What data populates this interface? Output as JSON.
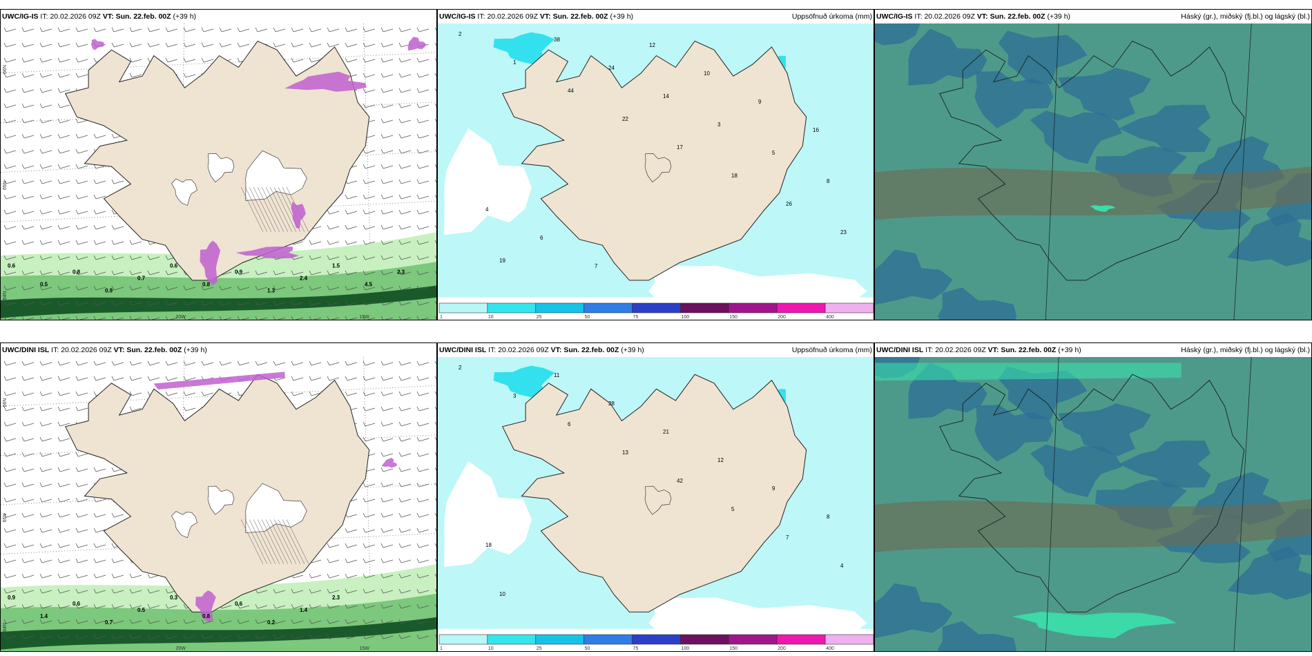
{
  "panels": [
    {
      "id": "ig-wind",
      "model": "UWC/IG-IS",
      "it_label": "IT:",
      "it_value": "20.02.2026 09Z",
      "vt_label": "VT:",
      "vt_value": "Sun. 22.feb. 00Z",
      "lead": "(+39 h)",
      "right_title": "",
      "lon_labels": [
        "20W",
        "15W"
      ],
      "lat_labels": [
        "66N",
        "65N",
        "64N"
      ],
      "values": [
        "0.6",
        "0.5",
        "0.8",
        "0.9",
        "0.7",
        "0.6",
        "0.8",
        "0.9",
        "1.3",
        "2.4",
        "1.5",
        "4.5",
        "2.3"
      ]
    },
    {
      "id": "ig-precip",
      "model": "UWC/IG-IS",
      "it_label": "IT:",
      "it_value": "20.02.2026 09Z",
      "vt_label": "VT:",
      "vt_value": "Sun. 22.feb. 00Z",
      "lead": "(+39 h)",
      "right_title": "Uppsöfnuð úrkoma (mm)",
      "values": [
        "2",
        "1",
        "44",
        "22",
        "17",
        "18",
        "26",
        "23",
        "19",
        "38",
        "24",
        "14",
        "3",
        "5",
        "8",
        "4",
        "6",
        "7",
        "12",
        "10",
        "9",
        "16"
      ]
    },
    {
      "id": "ig-cloud",
      "model": "UWC/IG-IS",
      "it_label": "IT:",
      "it_value": "20.02.2026 09Z",
      "vt_label": "VT:",
      "vt_value": "Sun. 22.feb. 00Z",
      "lead": "(+39 h)",
      "right_title": "Háský (gr.), miðský (fj.bl.) og lágský (bl.)"
    },
    {
      "id": "dini-wind",
      "model": "UWC/DINI ISL",
      "it_label": "IT:",
      "it_value": "20.02.2026 09Z",
      "vt_label": "VT:",
      "vt_value": "Sun. 22.feb. 00Z",
      "lead": "(+39 h)",
      "right_title": "",
      "lon_labels": [
        "20W",
        "15W"
      ],
      "lat_labels": [
        "66N",
        "65N",
        "64N"
      ],
      "values": [
        "0.9",
        "1.4",
        "0.6",
        "0.7",
        "0.5",
        "0.3",
        "0.8",
        "0.6",
        "0.2",
        "1.4",
        "2.3"
      ]
    },
    {
      "id": "dini-precip",
      "model": "UWC/DINI ISL",
      "it_label": "IT:",
      "it_value": "20.02.2026 09Z",
      "vt_label": "VT:",
      "vt_value": "Sun. 22.feb. 00Z",
      "lead": "(+39 h)",
      "right_title": "Uppsöfnuð úrkoma (mm)",
      "values": [
        "2",
        "3",
        "6",
        "13",
        "42",
        "5",
        "7",
        "4",
        "10",
        "11",
        "28",
        "21",
        "12",
        "9",
        "8",
        "18"
      ]
    },
    {
      "id": "dini-cloud",
      "model": "UWC/DINI ISL",
      "it_label": "IT:",
      "it_value": "20.02.2026 09Z",
      "vt_label": "VT:",
      "vt_value": "Sun. 22.feb. 00Z",
      "lead": "(+39 h)",
      "right_title": "Háský (gr.), miðský (fj.bl.) og lágský (bl.)"
    }
  ],
  "precip_legend": {
    "ticks": [
      "1",
      "10",
      "25",
      "50",
      "75",
      "100",
      "150",
      "200",
      "400"
    ],
    "colors": [
      "#b8f6f8",
      "#33e6ee",
      "#16c3e8",
      "#2f7de6",
      "#2b3fc8",
      "#6c1060",
      "#a0158c",
      "#ee18b0",
      "#f0b0f0"
    ]
  },
  "colors": {
    "land": "#efe3d2",
    "precip_light": "#bdf7f7",
    "precip_mid": "#33e0ee",
    "wind_green_light": "#c8f0c0",
    "wind_green_mid": "#7cc87c",
    "wind_green_dark": "#1a5a2a",
    "magenta": "#c060d0",
    "cloud_base": "#4e9a8a",
    "cloud_blue": "#2e6e96",
    "cloud_brown": "#6e6a50",
    "cloud_bright": "#38e8b0"
  }
}
